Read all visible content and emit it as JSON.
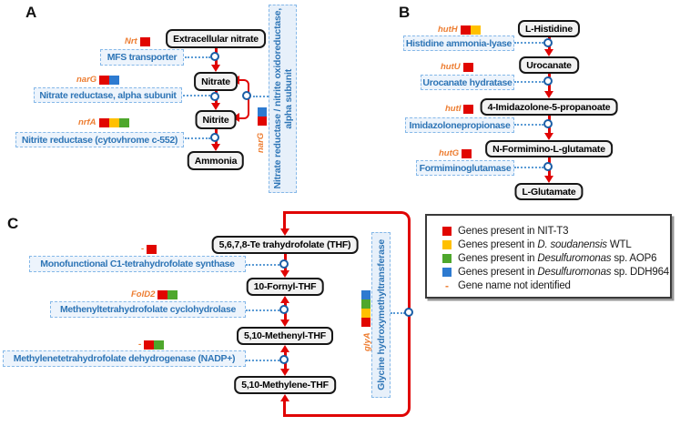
{
  "colors": {
    "red": "#e10600",
    "yellow": "#ffc000",
    "green": "#4ea72c",
    "blue": "#2d7ad0",
    "orange": "#ed7d31",
    "arrow": "#e00404",
    "enzymeText": "#2e75b6"
  },
  "panels": {
    "a": {
      "label": "A",
      "metabolites": [
        "Extracellular nitrate",
        "Nitrate",
        "Nitrite",
        "Ammonia"
      ],
      "enzymes": [
        {
          "gene": "Nrt",
          "name": "MFS transporter",
          "squares": [
            "red"
          ]
        },
        {
          "gene": "narG",
          "name": "Nitrate reductase, alpha subunit",
          "squares": [
            "red",
            "blue"
          ]
        },
        {
          "gene": "nrfA",
          "name": "Nitrite reductase (cytovhrome c-552)",
          "squares": [
            "red",
            "yellow",
            "green"
          ]
        }
      ],
      "side": {
        "gene": "narG",
        "line1": "Nitrate reductase / nitrite oxidoreductase,",
        "line2": "alpha subunit",
        "squares": [
          "blue",
          "red"
        ]
      }
    },
    "b": {
      "label": "B",
      "metabolites": [
        "L-Histidine",
        "Urocanate",
        "4-Imidazolone-5-propanoate",
        "N-Formimino-L-glutamate",
        "L-Glutamate"
      ],
      "enzymes": [
        {
          "gene": "hutH",
          "name": "Histidine ammonia-lyase",
          "squares": [
            "red",
            "yellow"
          ]
        },
        {
          "gene": "hutU",
          "name": "Urocanate hydratase",
          "squares": [
            "red"
          ]
        },
        {
          "gene": "hutI",
          "name": "Imidazolonepropionase",
          "squares": [
            "red"
          ]
        },
        {
          "gene": "hutG",
          "name": "Formiminoglutamase",
          "squares": [
            "red"
          ]
        }
      ]
    },
    "c": {
      "label": "C",
      "metabolites": [
        "5,6,7,8-Te trahydrofolate (THF)",
        "10-Fornyl-THF",
        "5,10-Methenyl-THF",
        "5,10-Methylene-THF"
      ],
      "enzymes": [
        {
          "gene": "-",
          "name": "Monofunctional C1-tetrahydrofolate synthase",
          "squares": [
            "red"
          ]
        },
        {
          "gene": "FolD2",
          "name": "Methenyltetrahydrofolate cyclohydrolase",
          "squares": [
            "red",
            "green"
          ]
        },
        {
          "gene": "-",
          "name": "Methylenetetrahydrofolate dehydrogenase (NADP+)",
          "squares": [
            "red",
            "green"
          ]
        }
      ],
      "side": {
        "gene": "glyA",
        "name": "Glycine hydroxymethyltransferase",
        "squares": [
          "blue",
          "green",
          "yellow",
          "red"
        ]
      }
    }
  },
  "legend": {
    "items": [
      {
        "swatch": "red",
        "prefix": "Genes present in ",
        "species": "",
        "suffix": "NIT-T3"
      },
      {
        "swatch": "yellow",
        "prefix": "Genes present in ",
        "species": "D. soudanensis",
        "suffix": " WTL"
      },
      {
        "swatch": "green",
        "prefix": "Genes present in ",
        "species": "Desulfuromonas",
        "suffix": " sp. AOP6"
      },
      {
        "swatch": "blue",
        "prefix": "Genes present in ",
        "species": "Desulfuromonas",
        "suffix": " sp. DDH964"
      },
      {
        "swatch": "dash",
        "prefix": "Gene name not identified",
        "species": "",
        "suffix": ""
      }
    ]
  }
}
